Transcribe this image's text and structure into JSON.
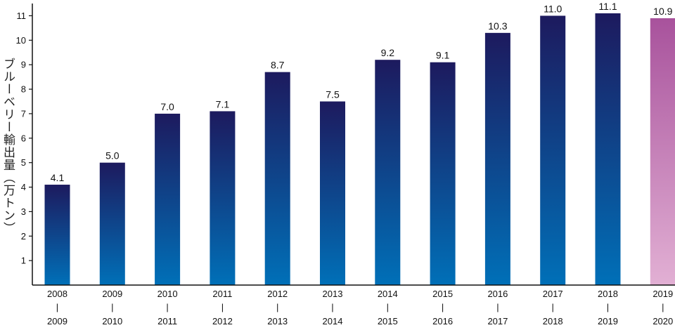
{
  "chart_data": {
    "type": "bar",
    "title": "",
    "ylabel": "ブルーベリー輸出量（万トン）",
    "xlabel": "",
    "categories": [
      {
        "top": "2008",
        "bottom": "2009"
      },
      {
        "top": "2009",
        "bottom": "2010"
      },
      {
        "top": "2010",
        "bottom": "2011"
      },
      {
        "top": "2011",
        "bottom": "2012"
      },
      {
        "top": "2012",
        "bottom": "2013"
      },
      {
        "top": "2013",
        "bottom": "2014"
      },
      {
        "top": "2014",
        "bottom": "2015"
      },
      {
        "top": "2015",
        "bottom": "2016"
      },
      {
        "top": "2016",
        "bottom": "2017"
      },
      {
        "top": "2017",
        "bottom": "2018"
      },
      {
        "top": "2018",
        "bottom": "2019"
      },
      {
        "top": "2019",
        "bottom": "2020"
      }
    ],
    "category_separator": "|",
    "values": [
      4.1,
      5.0,
      7.0,
      7.1,
      8.7,
      7.5,
      9.2,
      9.1,
      10.3,
      11.0,
      11.1,
      10.9
    ],
    "value_labels": [
      "4.1",
      "5.0",
      "7.0",
      "7.1",
      "8.7",
      "7.5",
      "9.2",
      "9.1",
      "10.3",
      "11.0",
      "11.1",
      "10.9"
    ],
    "yticks": [
      "1",
      "2",
      "3",
      "4",
      "5",
      "6",
      "7",
      "8",
      "9",
      "10",
      "11"
    ],
    "ylim": [
      0,
      11.5
    ],
    "grid": false,
    "legend": "none",
    "colors": {
      "bar_top": "#1d1a5e",
      "bar_bottom": "#0070b8",
      "highlight_top": "#a8529c",
      "highlight_bottom": "#e2b0d4"
    },
    "highlight_index": 11
  }
}
